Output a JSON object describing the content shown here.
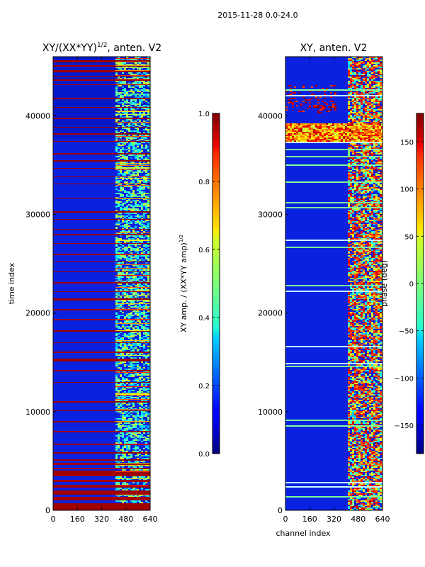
{
  "suptitle": "2015-11-28 0.0-24.0",
  "chart_data": [
    {
      "type": "heatmap",
      "title": "XY/(XX*YY)",
      "title_exponent": "1/2",
      "title_suffix": ", anten. V2",
      "xlabel": "",
      "ylabel": "time index",
      "xlim": [
        0,
        640
      ],
      "ylim": [
        0,
        46000
      ],
      "xticks": [
        0,
        160,
        320,
        480,
        640
      ],
      "yticks": [
        0,
        10000,
        20000,
        30000,
        40000
      ],
      "xtick_labels": [
        "0",
        "160",
        "320",
        "480",
        "640"
      ],
      "ytick_labels": [
        "0",
        "10000",
        "20000",
        "30000",
        "40000"
      ],
      "colorbar": {
        "label": "XY amp. / (XX*YY amp)",
        "label_exponent": "1/2",
        "range": [
          0.0,
          1.0
        ],
        "ticks": [
          0.0,
          0.2,
          0.4,
          0.6,
          0.8,
          1.0
        ],
        "tick_labels": [
          "0.0",
          "0.2",
          "0.4",
          "0.6",
          "0.8",
          "1.0"
        ],
        "colormap": "jet"
      }
    },
    {
      "type": "heatmap",
      "title": "XY, anten. V2",
      "xlabel": "channel index",
      "ylabel": "",
      "xlim": [
        0,
        640
      ],
      "ylim": [
        0,
        46000
      ],
      "xticks": [
        0,
        160,
        320,
        480,
        640
      ],
      "yticks": [
        0,
        10000,
        20000,
        30000,
        40000
      ],
      "xtick_labels": [
        "0",
        "160",
        "320",
        "480",
        "640"
      ],
      "ytick_labels": [
        "0",
        "10000",
        "20000",
        "30000",
        "40000"
      ],
      "colorbar": {
        "label": "phase (deg)",
        "range": [
          -180,
          180
        ],
        "ticks": [
          -150,
          -100,
          -50,
          0,
          50,
          100,
          150
        ],
        "tick_labels": [
          "−150",
          "−100",
          "−50",
          "0",
          "50",
          "100",
          "150"
        ],
        "colormap": "jet"
      }
    }
  ]
}
